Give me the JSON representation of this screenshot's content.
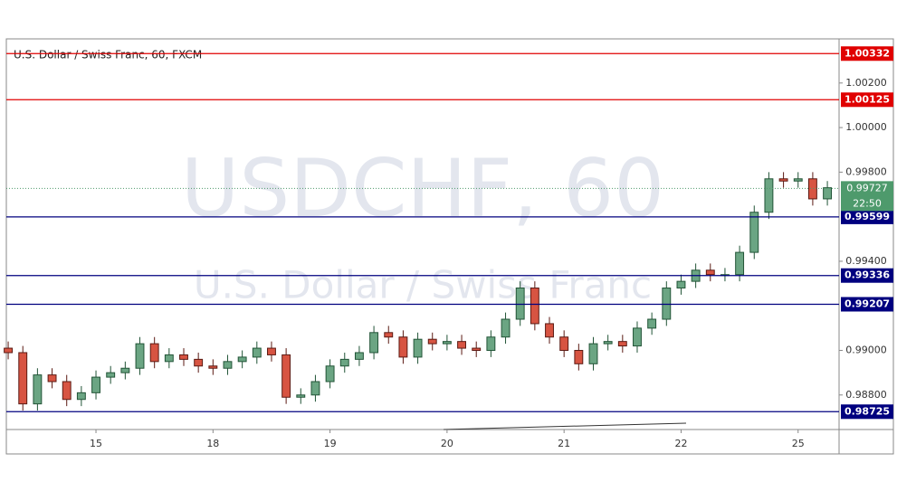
{
  "chart_data": {
    "type": "candlestick",
    "title": "U.S. Dollar / Swiss Franc, 60, FXCM",
    "watermark": [
      "USDCHF, 60",
      "U.S. Dollar / Swiss Franc"
    ],
    "x": [
      -0.75,
      -0.625,
      -0.5,
      -0.375,
      -0.25,
      -0.125,
      0,
      0.125,
      0.25,
      0.375,
      0.5,
      0.625,
      0.75,
      0.875,
      1,
      1.125,
      1.25,
      1.375,
      1.5,
      1.625,
      1.75,
      1.875,
      2,
      2.125,
      2.25,
      2.375,
      2.5,
      2.625,
      2.75,
      2.875,
      3,
      3.125,
      3.25,
      3.375,
      3.5,
      3.625,
      3.75,
      3.875,
      4,
      4.125,
      4.25,
      4.375,
      4.5,
      4.625,
      4.75,
      4.875,
      5,
      5.125,
      5.25,
      5.375,
      5.5,
      5.625,
      5.75,
      5.875,
      6,
      6.125,
      6.25
    ],
    "open": [
      0.9901,
      0.9899,
      0.9876,
      0.9889,
      0.9886,
      0.9878,
      0.9881,
      0.9888,
      0.989,
      0.9892,
      0.9903,
      0.9895,
      0.9898,
      0.9896,
      0.9893,
      0.9892,
      0.9895,
      0.9897,
      0.9901,
      0.9898,
      0.9879,
      0.988,
      0.9886,
      0.9893,
      0.9896,
      0.9899,
      0.9908,
      0.9906,
      0.9897,
      0.9905,
      0.9903,
      0.9904,
      0.9901,
      0.99,
      0.9906,
      0.9914,
      0.9928,
      0.9912,
      0.9906,
      0.99,
      0.9894,
      0.9903,
      0.9904,
      0.9902,
      0.991,
      0.9914,
      0.9928,
      0.9931,
      0.9936,
      0.9934,
      0.9934,
      0.9944,
      0.9962,
      0.9977,
      0.9976,
      0.9977,
      0.9968
    ],
    "high": [
      0.9904,
      0.9902,
      0.9892,
      0.9892,
      0.9889,
      0.9884,
      0.9891,
      0.9893,
      0.9895,
      0.9906,
      0.9906,
      0.9901,
      0.9901,
      0.9899,
      0.9896,
      0.9898,
      0.99,
      0.9904,
      0.9904,
      0.9901,
      0.9883,
      0.9889,
      0.9896,
      0.9899,
      0.9902,
      0.9911,
      0.9911,
      0.9909,
      0.9908,
      0.9908,
      0.9907,
      0.9907,
      0.9904,
      0.9909,
      0.9917,
      0.9931,
      0.9931,
      0.9915,
      0.9909,
      0.9903,
      0.9906,
      0.9907,
      0.9907,
      0.9913,
      0.9917,
      0.9931,
      0.9934,
      0.9939,
      0.9939,
      0.9937,
      0.9947,
      0.9965,
      0.998,
      0.998,
      0.998,
      0.998,
      0.9976
    ],
    "low": [
      0.9896,
      0.9873,
      0.9873,
      0.9883,
      0.9875,
      0.9875,
      0.9878,
      0.9885,
      0.9887,
      0.9889,
      0.9892,
      0.9892,
      0.9893,
      0.989,
      0.9889,
      0.9889,
      0.9892,
      0.9894,
      0.9895,
      0.9876,
      0.9876,
      0.9877,
      0.9883,
      0.989,
      0.9893,
      0.9896,
      0.9903,
      0.9894,
      0.9894,
      0.99,
      0.99,
      0.9898,
      0.9897,
      0.9897,
      0.9903,
      0.9911,
      0.9909,
      0.9903,
      0.9897,
      0.9891,
      0.9891,
      0.99,
      0.9899,
      0.9899,
      0.9907,
      0.9911,
      0.9925,
      0.9928,
      0.9931,
      0.9931,
      0.9931,
      0.9941,
      0.9959,
      0.9973,
      0.9973,
      0.9965,
      0.9965
    ],
    "close": [
      0.9899,
      0.9876,
      0.9889,
      0.9886,
      0.9878,
      0.9881,
      0.9888,
      0.989,
      0.9892,
      0.9903,
      0.9895,
      0.9898,
      0.9896,
      0.9893,
      0.9892,
      0.9895,
      0.9897,
      0.9901,
      0.9898,
      0.9879,
      0.988,
      0.9886,
      0.9893,
      0.9896,
      0.9899,
      0.9908,
      0.9906,
      0.9897,
      0.9905,
      0.9903,
      0.9904,
      0.9901,
      0.99,
      0.9906,
      0.9914,
      0.9928,
      0.9912,
      0.9906,
      0.99,
      0.9894,
      0.9903,
      0.9904,
      0.9902,
      0.991,
      0.9914,
      0.9928,
      0.9931,
      0.9936,
      0.9934,
      0.9934,
      0.9944,
      0.9962,
      0.9977,
      0.9976,
      0.9977,
      0.9968,
      0.9973
    ],
    "up_color": "#6ba583",
    "down_color": "#d75442",
    "xlim": [
      -0.766,
      6.35
    ],
    "xticks": [
      {
        "value": 0,
        "label": "15"
      },
      {
        "value": 1,
        "label": "18"
      },
      {
        "value": 2,
        "label": "19"
      },
      {
        "value": 3,
        "label": "20"
      },
      {
        "value": 4,
        "label": "21"
      },
      {
        "value": 5,
        "label": "22"
      },
      {
        "value": 6,
        "label": "25"
      }
    ],
    "ylim": [
      0.98645,
      1.00398
    ],
    "yticks": [
      {
        "value": 1.002,
        "label": "1.00200"
      },
      {
        "value": 1,
        "label": "1.00000"
      },
      {
        "value": 0.998,
        "label": "0.99800"
      },
      {
        "value": 0.994,
        "label": "0.99400"
      },
      {
        "value": 0.99,
        "label": "0.99000"
      },
      {
        "value": 0.988,
        "label": "0.98800"
      }
    ],
    "levels": [
      {
        "value": 1.00332,
        "color": "#e00000"
      },
      {
        "value": 1.00125,
        "color": "#e00000"
      },
      {
        "value": 0.99599,
        "color": "#00007f"
      },
      {
        "value": 0.99336,
        "color": "#00007f"
      },
      {
        "value": 0.99207,
        "color": "#00007f"
      },
      {
        "value": 0.98725,
        "color": "#00007f"
      }
    ],
    "last_price": 0.99727,
    "last_color": "#4e9a6c",
    "countdown": "22:50"
  }
}
